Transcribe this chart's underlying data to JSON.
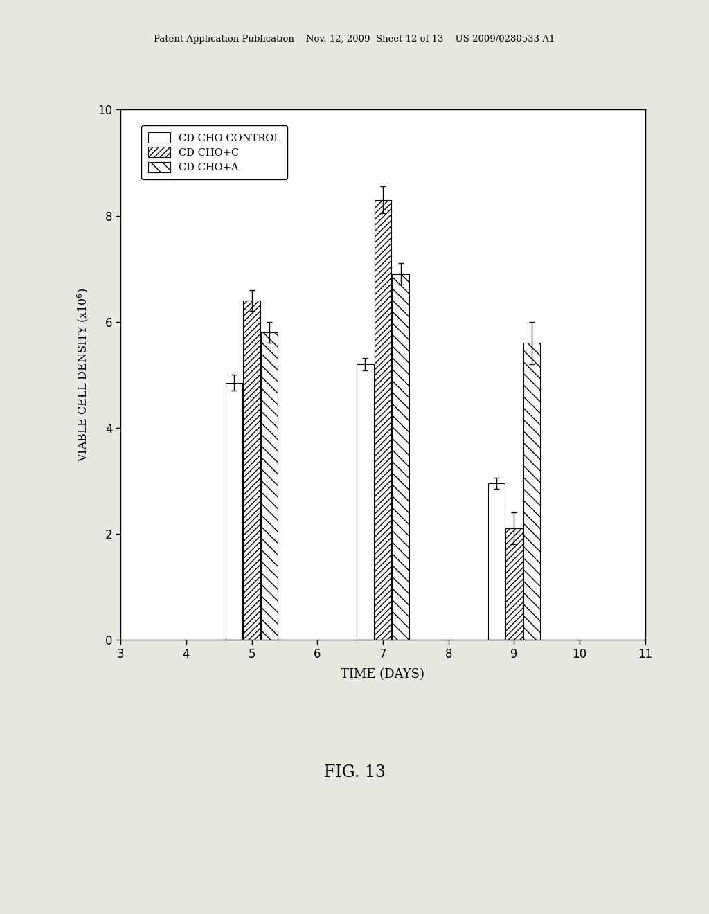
{
  "title": "FIG. 13",
  "xlabel": "TIME (DAYS)",
  "xlim": [
    3,
    11
  ],
  "ylim": [
    0,
    10
  ],
  "yticks": [
    0,
    2,
    4,
    6,
    8,
    10
  ],
  "xticks": [
    3,
    4,
    5,
    6,
    7,
    8,
    9,
    10,
    11
  ],
  "days": [
    5,
    7,
    9
  ],
  "series": {
    "CD CHO CONTROL": {
      "values": [
        4.85,
        5.2,
        2.95
      ],
      "errors": [
        0.15,
        0.12,
        0.1
      ]
    },
    "CD CHO+C": {
      "values": [
        6.4,
        8.3,
        2.1
      ],
      "errors": [
        0.2,
        0.25,
        0.3
      ]
    },
    "CD CHO+A": {
      "values": [
        5.8,
        6.9,
        5.6
      ],
      "errors": [
        0.2,
        0.2,
        0.4
      ]
    }
  },
  "bar_width": 0.27,
  "background_color": "#e8e8e0",
  "plot_bg_color": "#ffffff",
  "header_text": "Patent Application Publication    Nov. 12, 2009  Sheet 12 of 13    US 2009/0280533 A1",
  "fig_label": "FIG. 13"
}
